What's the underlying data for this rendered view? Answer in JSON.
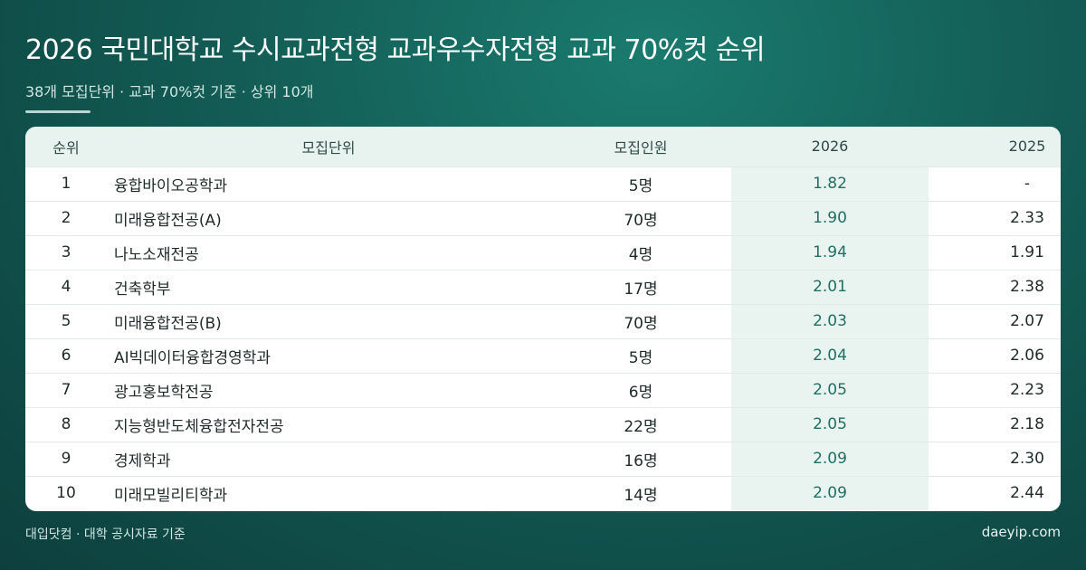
{
  "title": "2026 국민대학교 수시교과전형 교과우수자전형 교과 70%컷 순위",
  "subtitle": "38개 모집단위 · 교과 70%컷 기준 · 상위 10개",
  "table": {
    "headers": [
      "순위",
      "모집단위",
      "모집인원",
      "2026",
      "2025"
    ],
    "rows": [
      {
        "rank": "1",
        "unit": "융합바이오공학과",
        "quota": "5명",
        "y2026": "1.82",
        "y2025": "-"
      },
      {
        "rank": "2",
        "unit": "미래융합전공(A)",
        "quota": "70명",
        "y2026": "1.90",
        "y2025": "2.33"
      },
      {
        "rank": "3",
        "unit": "나노소재전공",
        "quota": "4명",
        "y2026": "1.94",
        "y2025": "1.91"
      },
      {
        "rank": "4",
        "unit": "건축학부",
        "quota": "17명",
        "y2026": "2.01",
        "y2025": "2.38"
      },
      {
        "rank": "5",
        "unit": "미래융합전공(B)",
        "quota": "70명",
        "y2026": "2.03",
        "y2025": "2.07"
      },
      {
        "rank": "6",
        "unit": "AI빅데이터융합경영학과",
        "quota": "5명",
        "y2026": "2.04",
        "y2025": "2.06"
      },
      {
        "rank": "7",
        "unit": "광고홍보학전공",
        "quota": "6명",
        "y2026": "2.05",
        "y2025": "2.23"
      },
      {
        "rank": "8",
        "unit": "지능형반도체융합전자전공",
        "quota": "22명",
        "y2026": "2.05",
        "y2025": "2.18"
      },
      {
        "rank": "9",
        "unit": "경제학과",
        "quota": "16명",
        "y2026": "2.09",
        "y2025": "2.30"
      },
      {
        "rank": "10",
        "unit": "미래모빌리티학과",
        "quota": "14명",
        "y2026": "2.09",
        "y2025": "2.44"
      }
    ]
  },
  "footer": {
    "source": "대입닷컴 · 대학 공시자료 기준",
    "site": "daeyip.com"
  }
}
